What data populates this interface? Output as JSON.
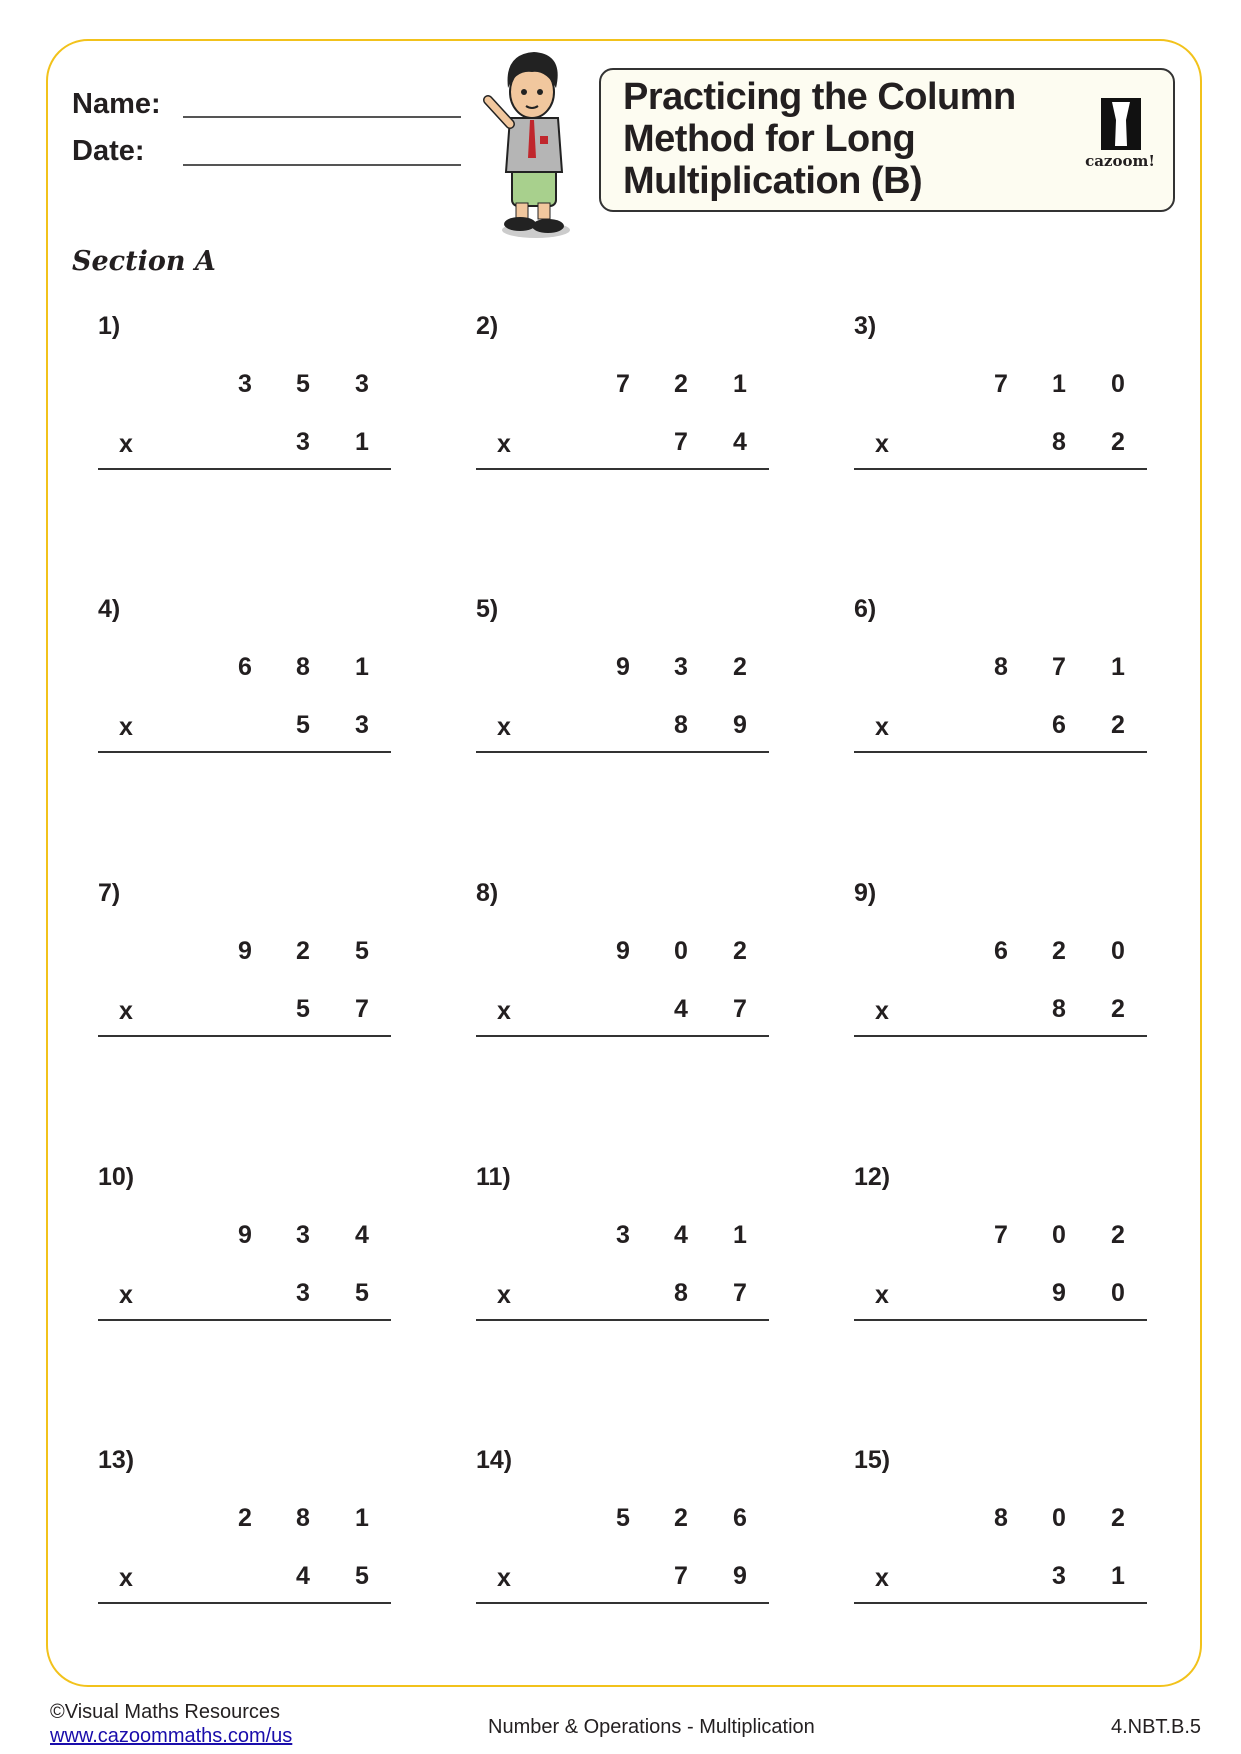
{
  "header": {
    "name_label": "Name:",
    "date_label": "Date:",
    "title_lines": [
      "Practicing the Column",
      "Method for Long",
      "Multiplication (B)"
    ],
    "logo_text": "cazoom!"
  },
  "section_title": "Section A",
  "operator": "x",
  "problems": [
    {
      "label": "1)",
      "top": [
        "3",
        "5",
        "3"
      ],
      "bottom": [
        "3",
        "1"
      ]
    },
    {
      "label": "2)",
      "top": [
        "7",
        "2",
        "1"
      ],
      "bottom": [
        "7",
        "4"
      ]
    },
    {
      "label": "3)",
      "top": [
        "7",
        "1",
        "0"
      ],
      "bottom": [
        "8",
        "2"
      ]
    },
    {
      "label": "4)",
      "top": [
        "6",
        "8",
        "1"
      ],
      "bottom": [
        "5",
        "3"
      ]
    },
    {
      "label": "5)",
      "top": [
        "9",
        "3",
        "2"
      ],
      "bottom": [
        "8",
        "9"
      ]
    },
    {
      "label": "6)",
      "top": [
        "8",
        "7",
        "1"
      ],
      "bottom": [
        "6",
        "2"
      ]
    },
    {
      "label": "7)",
      "top": [
        "9",
        "2",
        "5"
      ],
      "bottom": [
        "5",
        "7"
      ]
    },
    {
      "label": "8)",
      "top": [
        "9",
        "0",
        "2"
      ],
      "bottom": [
        "4",
        "7"
      ]
    },
    {
      "label": "9)",
      "top": [
        "6",
        "2",
        "0"
      ],
      "bottom": [
        "8",
        "2"
      ]
    },
    {
      "label": "10)",
      "top": [
        "9",
        "3",
        "4"
      ],
      "bottom": [
        "3",
        "5"
      ]
    },
    {
      "label": "11)",
      "top": [
        "3",
        "4",
        "1"
      ],
      "bottom": [
        "8",
        "7"
      ]
    },
    {
      "label": "12)",
      "top": [
        "7",
        "0",
        "2"
      ],
      "bottom": [
        "9",
        "0"
      ]
    },
    {
      "label": "13)",
      "top": [
        "2",
        "8",
        "1"
      ],
      "bottom": [
        "4",
        "5"
      ]
    },
    {
      "label": "14)",
      "top": [
        "5",
        "2",
        "6"
      ],
      "bottom": [
        "7",
        "9"
      ]
    },
    {
      "label": "15)",
      "top": [
        "8",
        "0",
        "2"
      ],
      "bottom": [
        "3",
        "1"
      ]
    }
  ],
  "footer": {
    "copyright": "©Visual Maths Resources",
    "url": "www.cazoommaths.com/us",
    "topic": "Number & Operations - Multiplication",
    "standard": "4.NBT.B.5"
  },
  "colors": {
    "frame": "#f2c21b",
    "title_box": "#fdfcf1",
    "link": "#1a0dab"
  }
}
